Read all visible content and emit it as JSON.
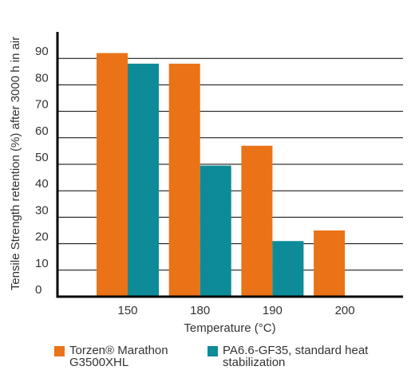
{
  "chart_data": {
    "type": "bar",
    "y_label": "Tensile Strength retention (%) after 3000 h in air",
    "x_label": "Temperature (°C)",
    "categories": [
      "150",
      "180",
      "190",
      "200"
    ],
    "series": [
      {
        "name": "Torzen® Marathon G3500XHL",
        "color": "#ea7317",
        "values": [
          92,
          88,
          57,
          25
        ]
      },
      {
        "name": "PA6.6-GF35, standard heat stabilization",
        "color": "#0e8b99",
        "values": [
          88,
          49.5,
          21,
          null
        ]
      }
    ],
    "ylim": [
      0,
      100
    ],
    "yticks": [
      0,
      10,
      20,
      30,
      40,
      50,
      60,
      70,
      80,
      90
    ],
    "grid": true
  }
}
